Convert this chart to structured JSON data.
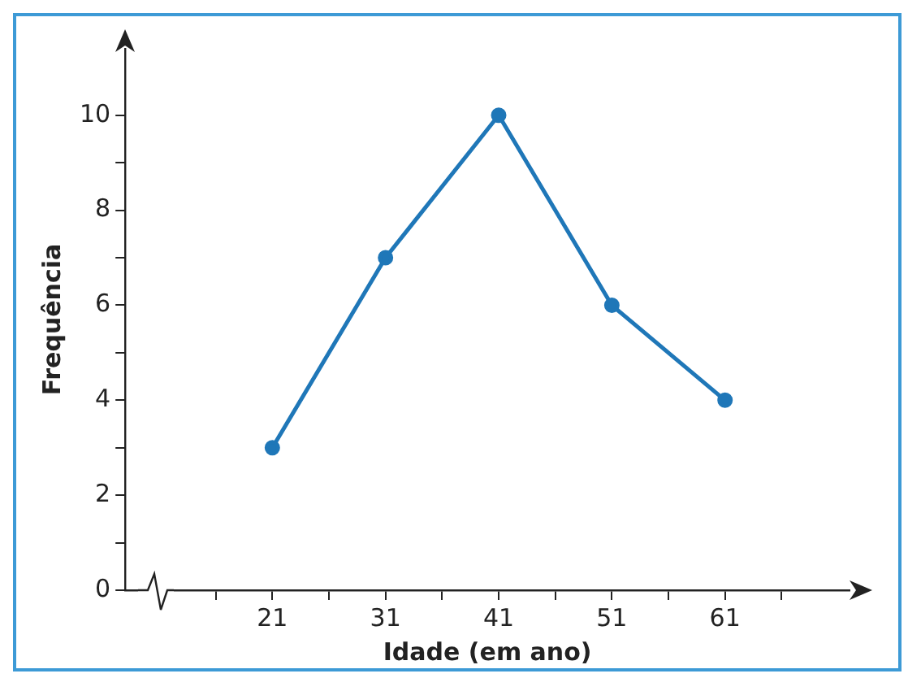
{
  "chart_data": {
    "type": "line",
    "xlabel": "Idade (em ano)",
    "ylabel": "Frequência",
    "x": [
      21,
      31,
      41,
      51,
      61
    ],
    "series": [
      {
        "color": "#1f77b8",
        "values": [
          3,
          7,
          10,
          6,
          4
        ]
      }
    ],
    "xlim": [
      8,
      72
    ],
    "ylim": [
      0,
      11.4
    ],
    "xticks": [
      {
        "value": 16,
        "label": null
      },
      21,
      {
        "value": 26,
        "label": null
      },
      31,
      {
        "value": 36,
        "label": null
      },
      41,
      {
        "value": 46,
        "label": null
      },
      51,
      {
        "value": 56,
        "label": null
      },
      61,
      {
        "value": 66,
        "label": null
      }
    ],
    "yticks": [
      0,
      {
        "value": 1,
        "label": null
      },
      2,
      {
        "value": 3,
        "label": null
      },
      4,
      {
        "value": 5,
        "label": null
      },
      6,
      {
        "value": 7,
        "label": null
      },
      8,
      {
        "value": 9,
        "label": null
      },
      10
    ],
    "grid": false,
    "legend": false,
    "marker": "circle",
    "line_style": "solid"
  }
}
